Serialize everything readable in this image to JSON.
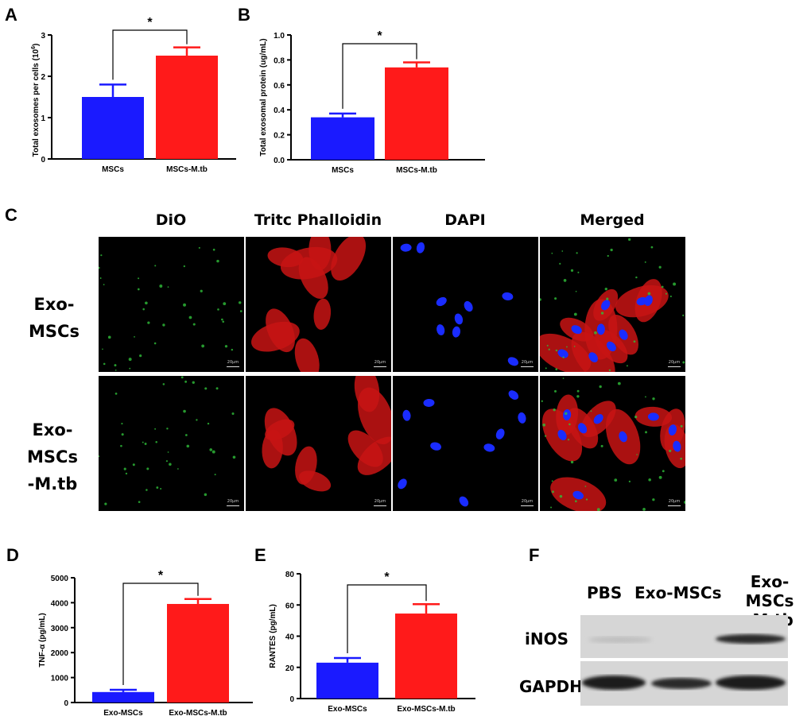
{
  "panels": {
    "A": {
      "letter": "A",
      "chart_data": {
        "type": "bar",
        "categories": [
          "MSCs",
          "MSCs-M.tb"
        ],
        "values": [
          1.5,
          2.5
        ],
        "errors": [
          0.3,
          0.2
        ],
        "colors": [
          "#1a1aff",
          "#ff1a1a"
        ],
        "ylabel_main": "Total exosomes per cells (10",
        "ylabel_sup": "6",
        "ylabel_end": ")",
        "ylim": [
          0,
          3
        ],
        "yticks": [
          "0",
          "1",
          "2",
          "3"
        ],
        "significance": "*"
      }
    },
    "B": {
      "letter": "B",
      "chart_data": {
        "type": "bar",
        "categories": [
          "MSCs",
          "MSCs-M.tb"
        ],
        "values": [
          0.34,
          0.74
        ],
        "errors": [
          0.03,
          0.04
        ],
        "colors": [
          "#1a1aff",
          "#ff1a1a"
        ],
        "ylabel": "Total exosomal protein (ug/mL)",
        "ylim": [
          0,
          1.0
        ],
        "yticks": [
          "0.0",
          "0.2",
          "0.4",
          "0.6",
          "0.8",
          "1.0"
        ],
        "significance": "*"
      }
    },
    "C": {
      "letter": "C",
      "columns": [
        "DiO",
        "Tritc Phalloidin",
        "DAPI",
        "Merged"
      ],
      "rows": [
        {
          "line1": "Exo-MSCs",
          "line2": ""
        },
        {
          "line1": "Exo-MSCs",
          "line2": "-M.tb"
        }
      ],
      "scalebar": "20μm"
    },
    "D": {
      "letter": "D",
      "chart_data": {
        "type": "bar",
        "categories": [
          "Exo-MSCs",
          "Exo-MSCs-M.tb"
        ],
        "values": [
          420,
          3950
        ],
        "errors": [
          90,
          200
        ],
        "colors": [
          "#1a1aff",
          "#ff1a1a"
        ],
        "ylabel": "TNF-α (pg/mL)",
        "ylim": [
          0,
          5000
        ],
        "yticks": [
          "0",
          "1000",
          "2000",
          "3000",
          "4000",
          "5000"
        ],
        "significance": "*"
      }
    },
    "E": {
      "letter": "E",
      "chart_data": {
        "type": "bar",
        "categories": [
          "Exo-MSCs",
          "Exo-MSCs-M.tb"
        ],
        "values": [
          23,
          54.5
        ],
        "errors": [
          3,
          6
        ],
        "colors": [
          "#1a1aff",
          "#ff1a1a"
        ],
        "ylabel": "RANTES (pg/mL)",
        "ylim": [
          0,
          80
        ],
        "yticks": [
          "0",
          "20",
          "40",
          "60",
          "80"
        ],
        "significance": "*"
      }
    },
    "F": {
      "letter": "F",
      "lanes": [
        {
          "line1": "PBS",
          "line2": ""
        },
        {
          "line1": "Exo-MSCs",
          "line2": ""
        },
        {
          "line1": "Exo-MSCs",
          "line2": "-M.tb"
        }
      ],
      "bands": [
        "iNOS",
        "GAPDH"
      ]
    }
  }
}
